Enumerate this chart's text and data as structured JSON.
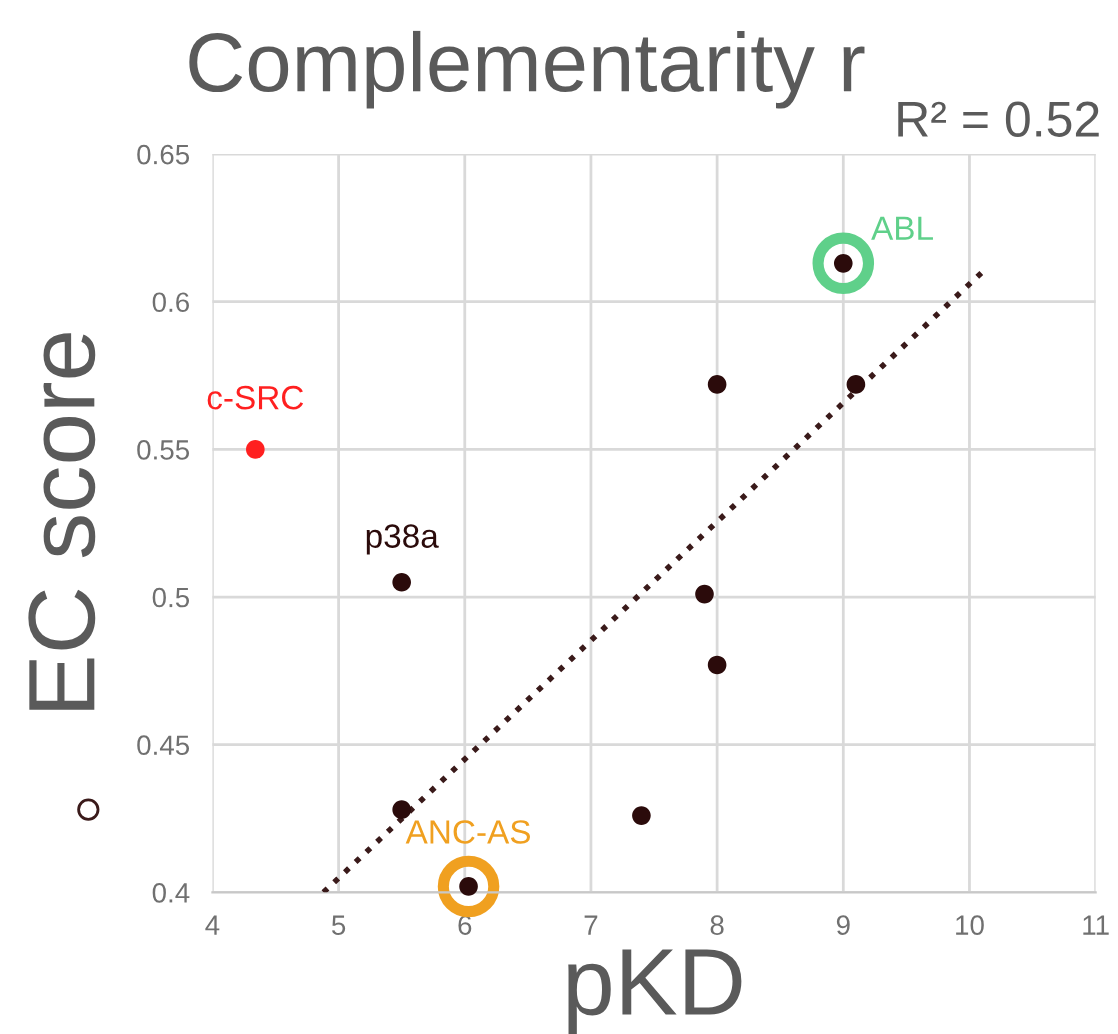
{
  "chart_data": {
    "type": "scatter",
    "title": "Complementarity r",
    "xlabel": "pKD",
    "ylabel": "EC score",
    "annotations": [
      "R² = 0.52",
      {
        "text": "p38a",
        "x": 5.5,
        "y": 0.505
      }
    ],
    "xlim": [
      4,
      11
    ],
    "xticks": [
      4,
      5,
      6,
      7,
      8,
      9,
      10,
      11
    ],
    "ylim": [
      0.4,
      0.65
    ],
    "yticks": [
      0.4,
      0.45,
      0.5,
      0.55,
      0.6,
      0.65
    ],
    "grid": true,
    "marker": "circle",
    "series": [
      {
        "color": "#2b0b0b",
        "x": [
          5.5,
          8.0,
          9.1,
          7.9,
          8.0,
          5.5,
          7.4,
          9.0,
          6.03
        ],
        "values": [
          0.505,
          0.572,
          0.572,
          0.501,
          0.477,
          0.428,
          0.426,
          0.613,
          0.402
        ]
      },
      {
        "type": "scatter",
        "name": "c-SRC",
        "color": "#ff2020",
        "x": [
          4.34
        ],
        "values": [
          0.55
        ]
      },
      {
        "type": "scatter",
        "name": "ABL",
        "color": "#5fd08a",
        "x": [
          9.0
        ],
        "values": [
          0.613
        ]
      },
      {
        "type": "scatter",
        "name": "ANC-AS",
        "color": "#f0a020",
        "x": [
          6.03
        ],
        "values": [
          0.402
        ]
      },
      {
        "type": "line",
        "color": "#3a1a1a",
        "line_style": "dotted",
        "marker": "none",
        "x": [
          4.88,
          10.1
        ],
        "values": [
          0.4,
          0.61
        ]
      }
    ]
  }
}
